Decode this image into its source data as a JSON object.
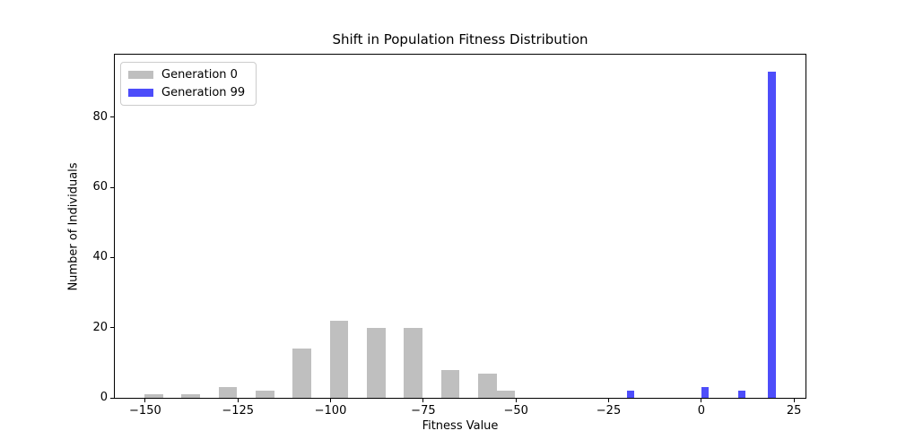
{
  "chart_data": {
    "type": "bar",
    "title": "Shift in Population Fitness Distribution",
    "xlabel": "Fitness Value",
    "ylabel": "Number of Individuals",
    "xlim": [
      -158.2,
      28.1
    ],
    "ylim": [
      0,
      97.8
    ],
    "grid": false,
    "legend_position": "upper left",
    "xticks": [
      {
        "v": -150,
        "label": "−150"
      },
      {
        "v": -125,
        "label": "−125"
      },
      {
        "v": -100,
        "label": "−100"
      },
      {
        "v": -75,
        "label": "−75"
      },
      {
        "v": -50,
        "label": "−50"
      },
      {
        "v": -25,
        "label": "−25"
      },
      {
        "v": 0,
        "label": "0"
      },
      {
        "v": 25,
        "label": "25"
      }
    ],
    "yticks": [
      {
        "v": 0,
        "label": "0"
      },
      {
        "v": 20,
        "label": "20"
      },
      {
        "v": 40,
        "label": "40"
      },
      {
        "v": 60,
        "label": "60"
      },
      {
        "v": 80,
        "label": "80"
      }
    ],
    "series": [
      {
        "name": "Generation 0",
        "color": "#bfbfbf",
        "bin_start": -150.2,
        "bin_width": 5.0,
        "counts": [
          1,
          0,
          1,
          0,
          3,
          0,
          2,
          0,
          14,
          0,
          22,
          0,
          20,
          0,
          20,
          0,
          8,
          0,
          7,
          2
        ]
      },
      {
        "name": "Generation 99",
        "color": "#4d4dfa",
        "bin_start": -20.0,
        "bin_width": 2.0,
        "counts": [
          2,
          0,
          0,
          0,
          0,
          0,
          0,
          0,
          0,
          0,
          3,
          0,
          0,
          0,
          0,
          2,
          0,
          0,
          0,
          93
        ]
      }
    ]
  }
}
